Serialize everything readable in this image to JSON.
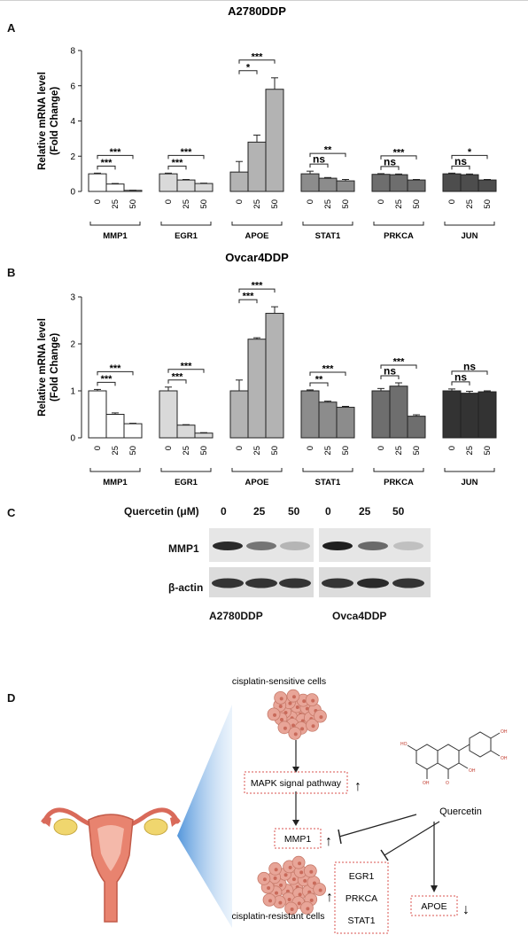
{
  "panels": {
    "a": "A",
    "b": "B",
    "c": "C",
    "d": "D"
  },
  "chart_data": [
    {
      "type": "bar",
      "title": "A2780DDP",
      "ylabel": "Relative mRNA level (Fold Change)",
      "ylabel_lines": [
        "Relative mRNA level",
        "(Fold Change)"
      ],
      "ylim": [
        0,
        8
      ],
      "yticks": [
        0,
        2,
        4,
        6,
        8
      ],
      "x_tick_labels": [
        "0",
        "25",
        "50"
      ],
      "groups": [
        {
          "name": "MMP1",
          "color": "#ffffff",
          "values": [
            1.0,
            0.42,
            0.06
          ],
          "errors": [
            0.04,
            0.03,
            0.01
          ],
          "brackets": [
            {
              "from": 0,
              "to": 1,
              "label": "***"
            },
            {
              "from": 0,
              "to": 2,
              "label": "***"
            }
          ]
        },
        {
          "name": "EGR1",
          "color": "#d9d9d9",
          "values": [
            1.0,
            0.65,
            0.45
          ],
          "errors": [
            0.04,
            0.03,
            0.02
          ],
          "brackets": [
            {
              "from": 0,
              "to": 1,
              "label": "***"
            },
            {
              "from": 0,
              "to": 2,
              "label": "***"
            }
          ]
        },
        {
          "name": "APOE",
          "color": "#b3b3b3",
          "values": [
            1.1,
            2.8,
            5.8
          ],
          "errors": [
            0.6,
            0.4,
            0.65
          ],
          "brackets": [
            {
              "from": 0,
              "to": 1,
              "label": "*"
            },
            {
              "from": 0,
              "to": 2,
              "label": "***"
            }
          ]
        },
        {
          "name": "STAT1",
          "color": "#8c8c8c",
          "values": [
            1.0,
            0.75,
            0.6
          ],
          "errors": [
            0.15,
            0.04,
            0.08
          ],
          "brackets": [
            {
              "from": 0,
              "to": 1,
              "label": "ns"
            },
            {
              "from": 0,
              "to": 2,
              "label": "**"
            }
          ]
        },
        {
          "name": "PRKCA",
          "color": "#6e6e6e",
          "values": [
            0.97,
            0.95,
            0.65
          ],
          "errors": [
            0.04,
            0.04,
            0.03
          ],
          "brackets": [
            {
              "from": 0,
              "to": 1,
              "label": "ns"
            },
            {
              "from": 0,
              "to": 2,
              "label": "***"
            }
          ]
        },
        {
          "name": "JUN",
          "color": "#4d4d4d",
          "values": [
            1.0,
            0.95,
            0.65
          ],
          "errors": [
            0.04,
            0.04,
            0.03
          ],
          "brackets": [
            {
              "from": 0,
              "to": 1,
              "label": "ns"
            },
            {
              "from": 0,
              "to": 2,
              "label": "*"
            }
          ]
        }
      ]
    },
    {
      "type": "bar",
      "title": "Ovcar4DDP",
      "ylabel": "Relative mRNA level (Fold Change)",
      "ylabel_lines": [
        "Relative mRNA level",
        "(Fold Change)"
      ],
      "ylim": [
        0,
        3
      ],
      "yticks": [
        0,
        1,
        2,
        3
      ],
      "x_tick_labels": [
        "0",
        "25",
        "50"
      ],
      "groups": [
        {
          "name": "MMP1",
          "color": "#ffffff",
          "values": [
            1.0,
            0.5,
            0.3
          ],
          "errors": [
            0.03,
            0.03,
            0.01
          ],
          "brackets": [
            {
              "from": 0,
              "to": 1,
              "label": "***"
            },
            {
              "from": 0,
              "to": 2,
              "label": "***"
            }
          ]
        },
        {
          "name": "EGR1",
          "color": "#d9d9d9",
          "values": [
            1.0,
            0.27,
            0.1
          ],
          "errors": [
            0.08,
            0.01,
            0.01
          ],
          "brackets": [
            {
              "from": 0,
              "to": 1,
              "label": "***"
            },
            {
              "from": 0,
              "to": 2,
              "label": "***"
            }
          ]
        },
        {
          "name": "APOE",
          "color": "#b3b3b3",
          "values": [
            1.0,
            2.1,
            2.65
          ],
          "errors": [
            0.23,
            0.03,
            0.14
          ],
          "brackets": [
            {
              "from": 0,
              "to": 1,
              "label": "***"
            },
            {
              "from": 0,
              "to": 2,
              "label": "***"
            }
          ]
        },
        {
          "name": "STAT1",
          "color": "#8c8c8c",
          "values": [
            1.0,
            0.76,
            0.65
          ],
          "errors": [
            0.02,
            0.02,
            0.02
          ],
          "brackets": [
            {
              "from": 0,
              "to": 1,
              "label": "**"
            },
            {
              "from": 0,
              "to": 2,
              "label": "***"
            }
          ]
        },
        {
          "name": "PRKCA",
          "color": "#6e6e6e",
          "values": [
            1.0,
            1.1,
            0.46
          ],
          "errors": [
            0.05,
            0.07,
            0.03
          ],
          "brackets": [
            {
              "from": 0,
              "to": 1,
              "label": "ns"
            },
            {
              "from": 0,
              "to": 2,
              "label": "***"
            }
          ]
        },
        {
          "name": "JUN",
          "color": "#333333",
          "values": [
            1.0,
            0.95,
            0.98
          ],
          "errors": [
            0.04,
            0.04,
            0.02
          ],
          "brackets": [
            {
              "from": 0,
              "to": 1,
              "label": "ns"
            },
            {
              "from": 0,
              "to": 2,
              "label": "ns"
            }
          ]
        }
      ]
    }
  ],
  "western": {
    "treatment_label": "Quercetin (μM)",
    "doses": [
      "0",
      "25",
      "50",
      "0",
      "25",
      "50"
    ],
    "rows": [
      "MMP1",
      "β-actin"
    ],
    "cell_lines": [
      "A2780DDP",
      "Ovca4DDP"
    ],
    "mmp1_band_intensity": [
      0.9,
      0.55,
      0.25,
      0.95,
      0.6,
      0.2
    ],
    "actin_band_intensity": [
      0.85,
      0.85,
      0.85,
      0.85,
      0.9,
      0.85
    ]
  },
  "diagram": {
    "sensitive": "cisplatin-sensitive cells",
    "resistant": "cisplatin-resistant cells",
    "pathway": "MAPK signal pathway",
    "mmp1": "MMP1",
    "quercetin": "Quercetin",
    "genes": [
      "EGR1",
      "PRKCA",
      "STAT1"
    ],
    "apoe": "APOE",
    "up_arrow": "↑",
    "down_arrow": "↓"
  },
  "colors": {
    "bar_stroke": "#222222",
    "dashed_box": "#d9534f",
    "blue_wedge": "#4a90d9",
    "cell_fill": "#e8a598",
    "uterus": "#e07a6a"
  }
}
